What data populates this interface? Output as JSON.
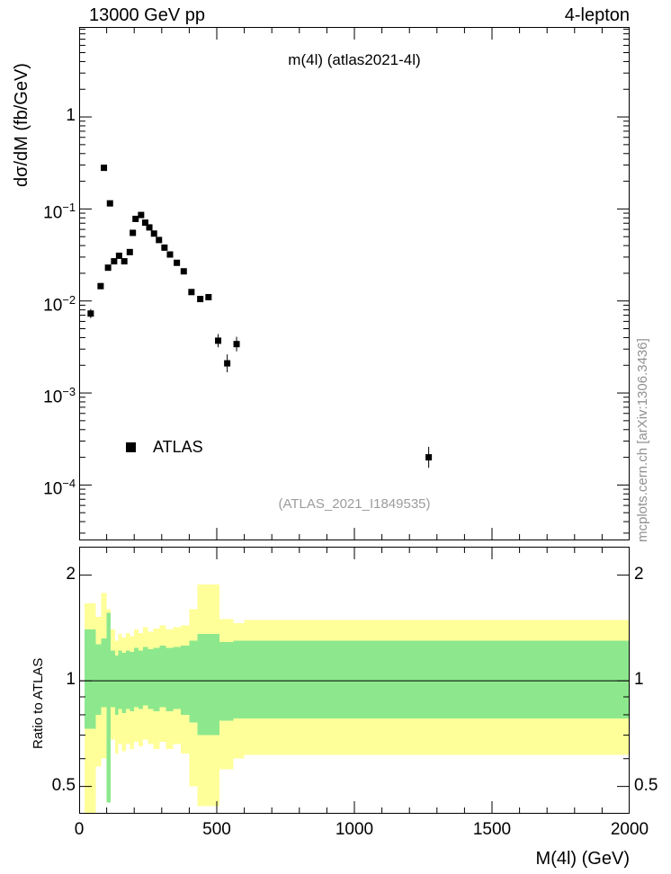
{
  "page": {
    "header_left": "13000 GeV pp",
    "header_right": "4-lepton",
    "watermark": "(ATLAS_2021_I1849535)",
    "side_note": "mcplots.cern.ch [arXiv:1306.3436]"
  },
  "chart_data": [
    {
      "id": "main",
      "type": "scatter",
      "title": "m(4l) (atlas2021-4l)",
      "ylabel": "dσ/dM (fb/GeV)",
      "xlim": [
        0,
        2000
      ],
      "ylog": true,
      "ylim": [
        2.5e-05,
        9.5
      ],
      "ytick_exponents": [
        0,
        -1,
        -2,
        -3,
        -4
      ],
      "grid": false,
      "legend": {
        "label": "ATLAS",
        "marker": "filled-square",
        "position": "lower-left"
      },
      "series": [
        {
          "name": "ATLAS",
          "marker": "filled-square",
          "color": "#000000",
          "points": [
            [
              42,
              0.0073,
              1.12
            ],
            [
              78,
              0.0145
            ],
            [
              90,
              0.28
            ],
            [
              105,
              0.023
            ],
            [
              112,
              0.115
            ],
            [
              127,
              0.027
            ],
            [
              145,
              0.031
            ],
            [
              164,
              0.027
            ],
            [
              184,
              0.034
            ],
            [
              195,
              0.055
            ],
            [
              205,
              0.078
            ],
            [
              225,
              0.086
            ],
            [
              240,
              0.071
            ],
            [
              255,
              0.063
            ],
            [
              272,
              0.054
            ],
            [
              290,
              0.046
            ],
            [
              310,
              0.038
            ],
            [
              330,
              0.032
            ],
            [
              355,
              0.026
            ],
            [
              380,
              0.021
            ],
            [
              408,
              0.0125
            ],
            [
              440,
              0.0105
            ],
            [
              470,
              0.011
            ],
            [
              505,
              0.0037,
              1.18
            ],
            [
              538,
              0.0021,
              1.25
            ],
            [
              572,
              0.0034,
              1.2
            ],
            [
              1270,
              0.0002,
              1.3
            ]
          ]
        }
      ]
    },
    {
      "id": "ratio",
      "type": "band",
      "ylabel": "Ratio to ATLAS",
      "xlabel": "M(4l) (GeV)",
      "xlim": [
        0,
        2000
      ],
      "xticks": [
        0,
        500,
        1000,
        1500,
        2000
      ],
      "xminor_step": 100,
      "ylog": true,
      "ylim": [
        0.418,
        2.41
      ],
      "yticks": [
        0.5,
        1,
        2
      ],
      "yminor": [
        0.6,
        0.7,
        0.8,
        0.9
      ],
      "refline": 1.0,
      "band_colors": {
        "outer": "#ffff9a",
        "inner": "#8de88d"
      },
      "bands": {
        "outer": [
          [
            20,
            60,
            0.4,
            1.66
          ],
          [
            60,
            80,
            0.57,
            1.52
          ],
          [
            80,
            100,
            0.6,
            1.78
          ],
          [
            100,
            114,
            0.47,
            1.6
          ],
          [
            114,
            130,
            0.68,
            1.4
          ],
          [
            130,
            142,
            0.62,
            1.3
          ],
          [
            142,
            156,
            0.66,
            1.36
          ],
          [
            156,
            170,
            0.63,
            1.33
          ],
          [
            170,
            184,
            0.66,
            1.37
          ],
          [
            184,
            200,
            0.64,
            1.34
          ],
          [
            200,
            216,
            0.67,
            1.4
          ],
          [
            216,
            232,
            0.65,
            1.37
          ],
          [
            232,
            250,
            0.68,
            1.42
          ],
          [
            250,
            270,
            0.66,
            1.38
          ],
          [
            270,
            292,
            0.64,
            1.41
          ],
          [
            292,
            316,
            0.67,
            1.44
          ],
          [
            316,
            342,
            0.64,
            1.4
          ],
          [
            342,
            370,
            0.66,
            1.42
          ],
          [
            370,
            400,
            0.62,
            1.44
          ],
          [
            400,
            430,
            0.5,
            1.6
          ],
          [
            430,
            510,
            0.44,
            1.88
          ],
          [
            510,
            560,
            0.56,
            1.5
          ],
          [
            560,
            600,
            0.6,
            1.46
          ],
          [
            600,
            2000,
            0.615,
            1.49
          ]
        ],
        "inner": [
          [
            20,
            60,
            0.73,
            1.4
          ],
          [
            60,
            80,
            0.8,
            1.27
          ],
          [
            80,
            100,
            0.84,
            1.32
          ],
          [
            100,
            114,
            0.45,
            1.56
          ],
          [
            114,
            130,
            0.84,
            1.22
          ],
          [
            130,
            142,
            0.8,
            1.18
          ],
          [
            142,
            156,
            0.83,
            1.22
          ],
          [
            156,
            170,
            0.81,
            1.2
          ],
          [
            170,
            184,
            0.83,
            1.22
          ],
          [
            184,
            200,
            0.82,
            1.21
          ],
          [
            200,
            216,
            0.84,
            1.24
          ],
          [
            216,
            232,
            0.83,
            1.22
          ],
          [
            232,
            250,
            0.85,
            1.25
          ],
          [
            250,
            270,
            0.83,
            1.23
          ],
          [
            270,
            292,
            0.82,
            1.24
          ],
          [
            292,
            316,
            0.84,
            1.26
          ],
          [
            316,
            342,
            0.82,
            1.24
          ],
          [
            342,
            370,
            0.83,
            1.25
          ],
          [
            370,
            400,
            0.8,
            1.26
          ],
          [
            400,
            430,
            0.76,
            1.3
          ],
          [
            430,
            510,
            0.7,
            1.36
          ],
          [
            510,
            560,
            0.77,
            1.29
          ],
          [
            560,
            600,
            0.78,
            1.3
          ],
          [
            600,
            2000,
            0.78,
            1.3
          ]
        ]
      }
    }
  ]
}
